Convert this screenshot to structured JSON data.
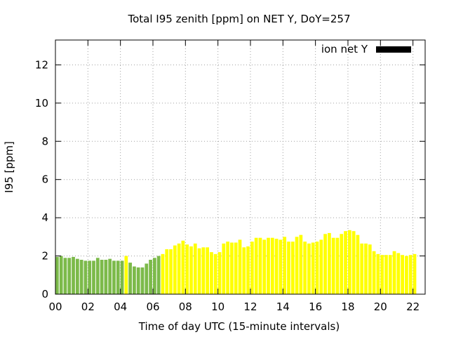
{
  "chart_data": {
    "type": "bar",
    "title": "Total I95 zenith [ppm] on NET Y, DoY=257",
    "xlabel": "Time of day UTC (15-minute intervals)",
    "ylabel": "I95 [ppm]",
    "xlim": [
      0,
      22.75
    ],
    "ylim": [
      0,
      13.3
    ],
    "xticks": [
      "00",
      "02",
      "04",
      "06",
      "08",
      "10",
      "12",
      "14",
      "16",
      "18",
      "20",
      "22"
    ],
    "yticks": [
      "0",
      "2",
      "4",
      "6",
      "8",
      "10",
      "12"
    ],
    "grid": true,
    "legend": {
      "label": "ion net Y",
      "placement": "top-right",
      "color": "#000000"
    },
    "bar_interval_hours": 0.25,
    "colors": {
      "green": "#7cba4a",
      "yellow": "#ffff00"
    },
    "values": [
      1.95,
      2.0,
      1.9,
      1.9,
      1.95,
      1.85,
      1.8,
      1.75,
      1.75,
      1.75,
      1.9,
      1.8,
      1.8,
      1.85,
      1.75,
      1.75,
      1.75,
      2.0,
      1.65,
      1.45,
      1.4,
      1.4,
      1.6,
      1.8,
      1.9,
      2.0,
      2.1,
      2.35,
      2.35,
      2.55,
      2.65,
      2.8,
      2.6,
      2.5,
      2.65,
      2.4,
      2.45,
      2.45,
      2.2,
      2.1,
      2.2,
      2.65,
      2.75,
      2.7,
      2.7,
      2.85,
      2.45,
      2.5,
      2.75,
      2.95,
      2.95,
      2.85,
      2.95,
      2.95,
      2.9,
      2.85,
      3.0,
      2.75,
      2.75,
      3.0,
      3.1,
      2.75,
      2.65,
      2.7,
      2.75,
      2.85,
      3.15,
      3.2,
      2.95,
      2.95,
      3.15,
      3.3,
      3.35,
      3.3,
      3.1,
      2.65,
      2.65,
      2.6,
      2.25,
      2.1,
      2.05,
      2.05,
      2.05,
      2.25,
      2.15,
      2.05,
      2.0,
      2.05,
      2.1
    ],
    "bar_colors": [
      "green",
      "green",
      "green",
      "green",
      "green",
      "green",
      "green",
      "green",
      "green",
      "green",
      "green",
      "green",
      "green",
      "green",
      "green",
      "green",
      "green",
      "yellow",
      "green",
      "green",
      "green",
      "green",
      "green",
      "green",
      "green",
      "green",
      "yellow",
      "yellow",
      "yellow",
      "yellow",
      "yellow",
      "yellow",
      "yellow",
      "yellow",
      "yellow",
      "yellow",
      "yellow",
      "yellow",
      "yellow",
      "yellow",
      "yellow",
      "yellow",
      "yellow",
      "yellow",
      "yellow",
      "yellow",
      "yellow",
      "yellow",
      "yellow",
      "yellow",
      "yellow",
      "yellow",
      "yellow",
      "yellow",
      "yellow",
      "yellow",
      "yellow",
      "yellow",
      "yellow",
      "yellow",
      "yellow",
      "yellow",
      "yellow",
      "yellow",
      "yellow",
      "yellow",
      "yellow",
      "yellow",
      "yellow",
      "yellow",
      "yellow",
      "yellow",
      "yellow",
      "yellow",
      "yellow",
      "yellow",
      "yellow",
      "yellow",
      "yellow",
      "yellow",
      "yellow",
      "yellow",
      "yellow",
      "yellow",
      "yellow",
      "yellow",
      "yellow",
      "yellow",
      "yellow"
    ]
  }
}
